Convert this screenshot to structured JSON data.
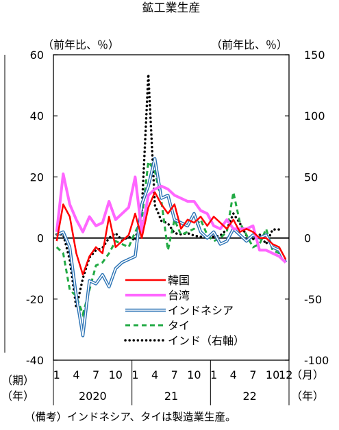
{
  "chart_data": {
    "type": "line",
    "title": "鉱工業生産",
    "left_unit": "（前年比、％）",
    "right_unit": "（前年比、％）",
    "ylim_left": [
      -40,
      60
    ],
    "ylim_right": [
      -100,
      150
    ],
    "yticks_left": [
      "60",
      "40",
      "20",
      "0",
      "-20",
      "-40"
    ],
    "yticks_right": [
      "150",
      "100",
      "50",
      "0",
      "-50",
      "-100"
    ],
    "zero_line": true,
    "x_period_label": "（期）",
    "x_year_label": "（年）",
    "x_month_label": "（月）",
    "x_year_label_right": "（年）",
    "month_ticks": [
      {
        "i": 0,
        "label": "1"
      },
      {
        "i": 3,
        "label": "4"
      },
      {
        "i": 6,
        "label": "7"
      },
      {
        "i": 9,
        "label": "10"
      },
      {
        "i": 12,
        "label": "1"
      },
      {
        "i": 15,
        "label": "4"
      },
      {
        "i": 18,
        "label": "7"
      },
      {
        "i": 21,
        "label": "10"
      },
      {
        "i": 24,
        "label": "1"
      },
      {
        "i": 27,
        "label": "4"
      },
      {
        "i": 30,
        "label": "7"
      },
      {
        "i": 33,
        "label": "10"
      },
      {
        "i": 35,
        "label": "12"
      }
    ],
    "years": [
      {
        "label": "2020",
        "start": 0,
        "end": 11
      },
      {
        "label": "21",
        "start": 12,
        "end": 23
      },
      {
        "label": "22",
        "start": 24,
        "end": 35
      }
    ],
    "legend_position": "bottom-right",
    "series": [
      {
        "name": "韓国",
        "axis": "left",
        "color": "#ff0000",
        "style": "solid",
        "values": [
          -1,
          11,
          7,
          -5,
          -12,
          -6,
          -3,
          -5,
          7,
          -3,
          -1,
          1,
          8,
          0,
          10,
          15,
          11,
          8,
          11,
          3,
          6,
          5,
          7,
          4,
          7,
          5,
          3,
          6,
          2,
          3,
          2,
          0,
          0,
          -2,
          -3,
          -7
        ]
      },
      {
        "name": "台湾",
        "axis": "left",
        "color": "#ff66ff",
        "style": "solid",
        "values": [
          2,
          21,
          11,
          6,
          2,
          7,
          4,
          5,
          12,
          6,
          8,
          10,
          20,
          2,
          14,
          16,
          17,
          16,
          14,
          13,
          12,
          12,
          9,
          8,
          4,
          3,
          6,
          3,
          3,
          3,
          4,
          -4,
          -4,
          -5,
          -6,
          -8
        ]
      },
      {
        "name": "インドネシア",
        "axis": "left",
        "color": "#2e75b6",
        "style": "double",
        "values": [
          1,
          2,
          -3,
          -19,
          -32,
          -14,
          -15,
          -12,
          -16,
          -10,
          -8,
          -7,
          -6,
          11,
          17,
          26,
          13,
          14,
          6,
          5,
          4,
          8,
          2,
          0,
          2,
          -2,
          -1,
          3,
          1,
          -1,
          1,
          0,
          1,
          -3,
          -4,
          -8
        ]
      },
      {
        "name": "タイ",
        "axis": "left",
        "color": "#22aa44",
        "style": "dashed",
        "values": [
          -3,
          -5,
          -17,
          -19,
          -25,
          -17,
          -9,
          -8,
          -5,
          -1,
          -2,
          -3,
          2,
          6,
          25,
          22,
          12,
          -4,
          6,
          1,
          2,
          3,
          6,
          1,
          -1,
          0,
          2,
          15,
          5,
          1,
          -3,
          -2,
          3,
          -4,
          -5,
          -8
        ]
      },
      {
        "name": "インド（右軸）",
        "axis": "right",
        "color": "#000000",
        "style": "dotted",
        "values": [
          3,
          3,
          -18,
          -57,
          -33,
          -16,
          -10,
          -8,
          0,
          4,
          -2,
          1,
          -2,
          22,
          134,
          27,
          14,
          12,
          4,
          3,
          4,
          2,
          1,
          2,
          1,
          2,
          7,
          20,
          12,
          2,
          -1,
          3,
          -5,
          7,
          7,
          null
        ]
      }
    ]
  },
  "footnote": "（備考）インドネシア、タイは製造業生産。"
}
